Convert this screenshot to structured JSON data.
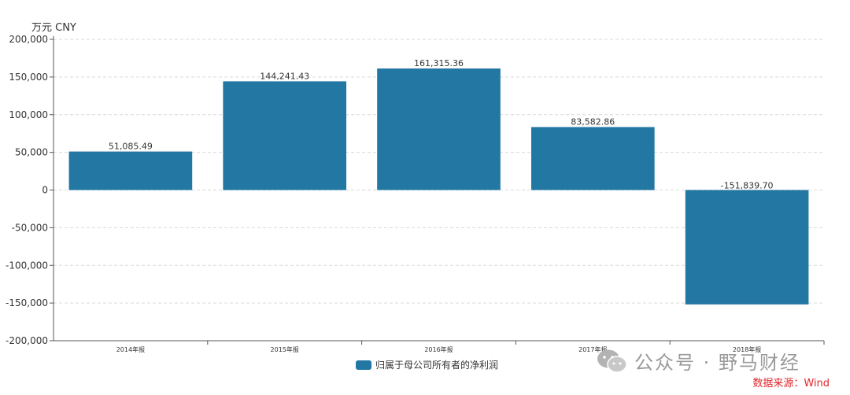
{
  "chart_data": {
    "type": "bar",
    "unit_label": "万元  CNY",
    "categories": [
      "2014年报",
      "2015年报",
      "2016年报",
      "2017年报",
      "2018年报"
    ],
    "series": [
      {
        "name": "归属于母公司所有者的净利润",
        "values": [
          51085.49,
          144241.43,
          161315.36,
          83582.86,
          -151839.7
        ],
        "value_labels": [
          "51,085.49",
          "144,241.43",
          "161,315.36",
          "83,582.86",
          "-151,839.70"
        ]
      }
    ],
    "ylim": [
      -200000,
      200000
    ],
    "yticks": [
      200000,
      150000,
      100000,
      50000,
      0,
      -50000,
      -100000,
      -150000,
      -200000
    ],
    "ytick_labels": [
      "200,000",
      "150,000",
      "100,000",
      "50,000",
      "0",
      "-50,000",
      "-100,000",
      "-150,000",
      "-200,000"
    ],
    "grid": true,
    "legend_position": "bottom-center",
    "bar_color": "#2277a3"
  },
  "watermark": {
    "text": "公众号 · 野马财经",
    "icon": "wechat-icon"
  },
  "source_note": "数据来源：Wind"
}
